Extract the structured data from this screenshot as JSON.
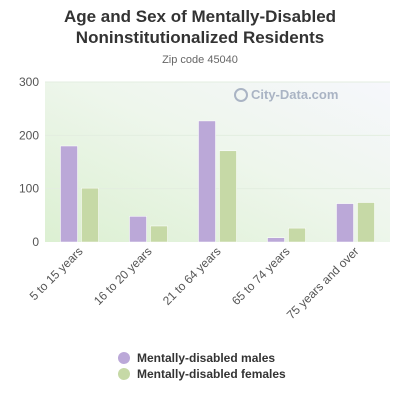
{
  "chart_data": {
    "type": "bar",
    "title": "Age and Sex of Mentally-Disabled Noninstitutionalized Residents",
    "subtitle": "Zip code 45040",
    "categories": [
      "5 to 15 years",
      "16 to 20 years",
      "21 to 64 years",
      "65 to 74 years",
      "75 years and over"
    ],
    "series": [
      {
        "name": "Mentally-disabled males",
        "values": [
          180,
          48,
          227,
          8,
          72
        ],
        "color": "#bba8d8"
      },
      {
        "name": "Mentally-disabled females",
        "values": [
          101,
          30,
          171,
          26,
          74
        ],
        "color": "#c6d9a6"
      }
    ],
    "ylim": [
      0,
      300
    ],
    "yticks": [
      0,
      100,
      200,
      300
    ],
    "grid": true,
    "legend_position": "bottom"
  },
  "watermark": {
    "text": "City-Data.com",
    "icon": "search-icon"
  }
}
